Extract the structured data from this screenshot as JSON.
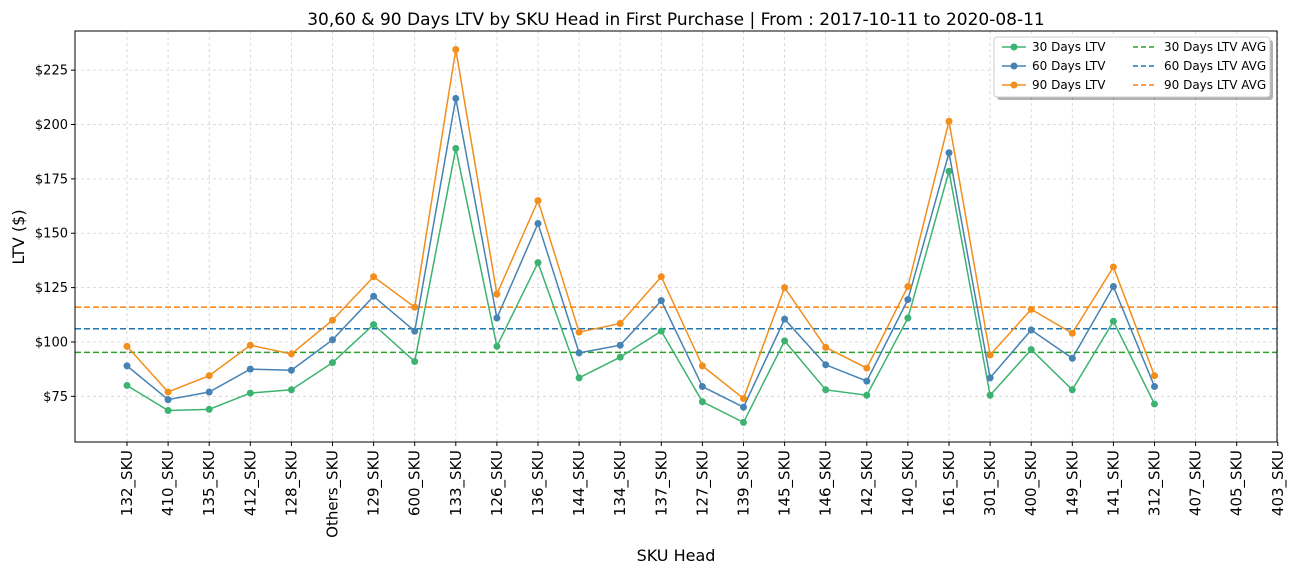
{
  "chart_data": {
    "type": "line",
    "title": "30,60 & 90 Days LTV by SKU Head in First Purchase | From : 2017-10-11 to 2020-08-11",
    "xlabel": "SKU Head",
    "ylabel": "LTV ($)",
    "ylim": [
      54,
      243
    ],
    "yticks": [
      75,
      100,
      125,
      150,
      175,
      200,
      225
    ],
    "ytick_labels": [
      "$75",
      "$100",
      "$125",
      "$150",
      "$175",
      "$200",
      "$225"
    ],
    "grid": true,
    "legend_position": "top-right",
    "categories": [
      "132_SKU",
      "410_SKU",
      "135_SKU",
      "412_SKU",
      "128_SKU",
      "Others_SKU",
      "129_SKU",
      "600_SKU",
      "133_SKU",
      "126_SKU",
      "136_SKU",
      "144_SKU",
      "134_SKU",
      "137_SKU",
      "127_SKU",
      "139_SKU",
      "145_SKU",
      "146_SKU",
      "142_SKU",
      "140_SKU",
      "161_SKU",
      "301_SKU",
      "400_SKU",
      "149_SKU",
      "141_SKU",
      "312_SKU",
      "407_SKU",
      "405_SKU",
      "403_SKU"
    ],
    "series": [
      {
        "name": "30 Days LTV",
        "color": "#3cb371",
        "values": [
          80,
          68.5,
          69,
          76.5,
          78,
          90.5,
          108,
          91,
          189,
          98,
          136.5,
          83.5,
          93,
          105,
          72.5,
          63,
          100.5,
          78,
          75.5,
          111,
          178.5,
          75.5,
          96.5,
          78,
          109.5,
          71.5,
          null,
          null,
          null
        ]
      },
      {
        "name": "60 Days LTV",
        "color": "#4682b4",
        "values": [
          89,
          73.5,
          77,
          87.5,
          87,
          101,
          121,
          105,
          212,
          111,
          154.5,
          95,
          98.5,
          119,
          79.5,
          70,
          110.5,
          89.5,
          82,
          119.5,
          187,
          83.5,
          105.5,
          92.5,
          125.5,
          79.5,
          null,
          null,
          null
        ]
      },
      {
        "name": "90 Days LTV",
        "color": "#f28e1c",
        "values": [
          98,
          77,
          84.5,
          98.5,
          94.5,
          110,
          130,
          116,
          234.5,
          122,
          165,
          104.5,
          108.5,
          130,
          89,
          74,
          125,
          97.5,
          88,
          125.5,
          201.5,
          94,
          115,
          104,
          134.5,
          84.5,
          null,
          null,
          null
        ]
      }
    ],
    "averages": [
      {
        "name": "30 Days LTV AVG",
        "color": "#2ca02c",
        "value": 95.2
      },
      {
        "name": "60 Days LTV AVG",
        "color": "#1f77b4",
        "value": 106.1
      },
      {
        "name": "90 Days LTV AVG",
        "color": "#ff7f0e",
        "value": 116
      }
    ]
  }
}
